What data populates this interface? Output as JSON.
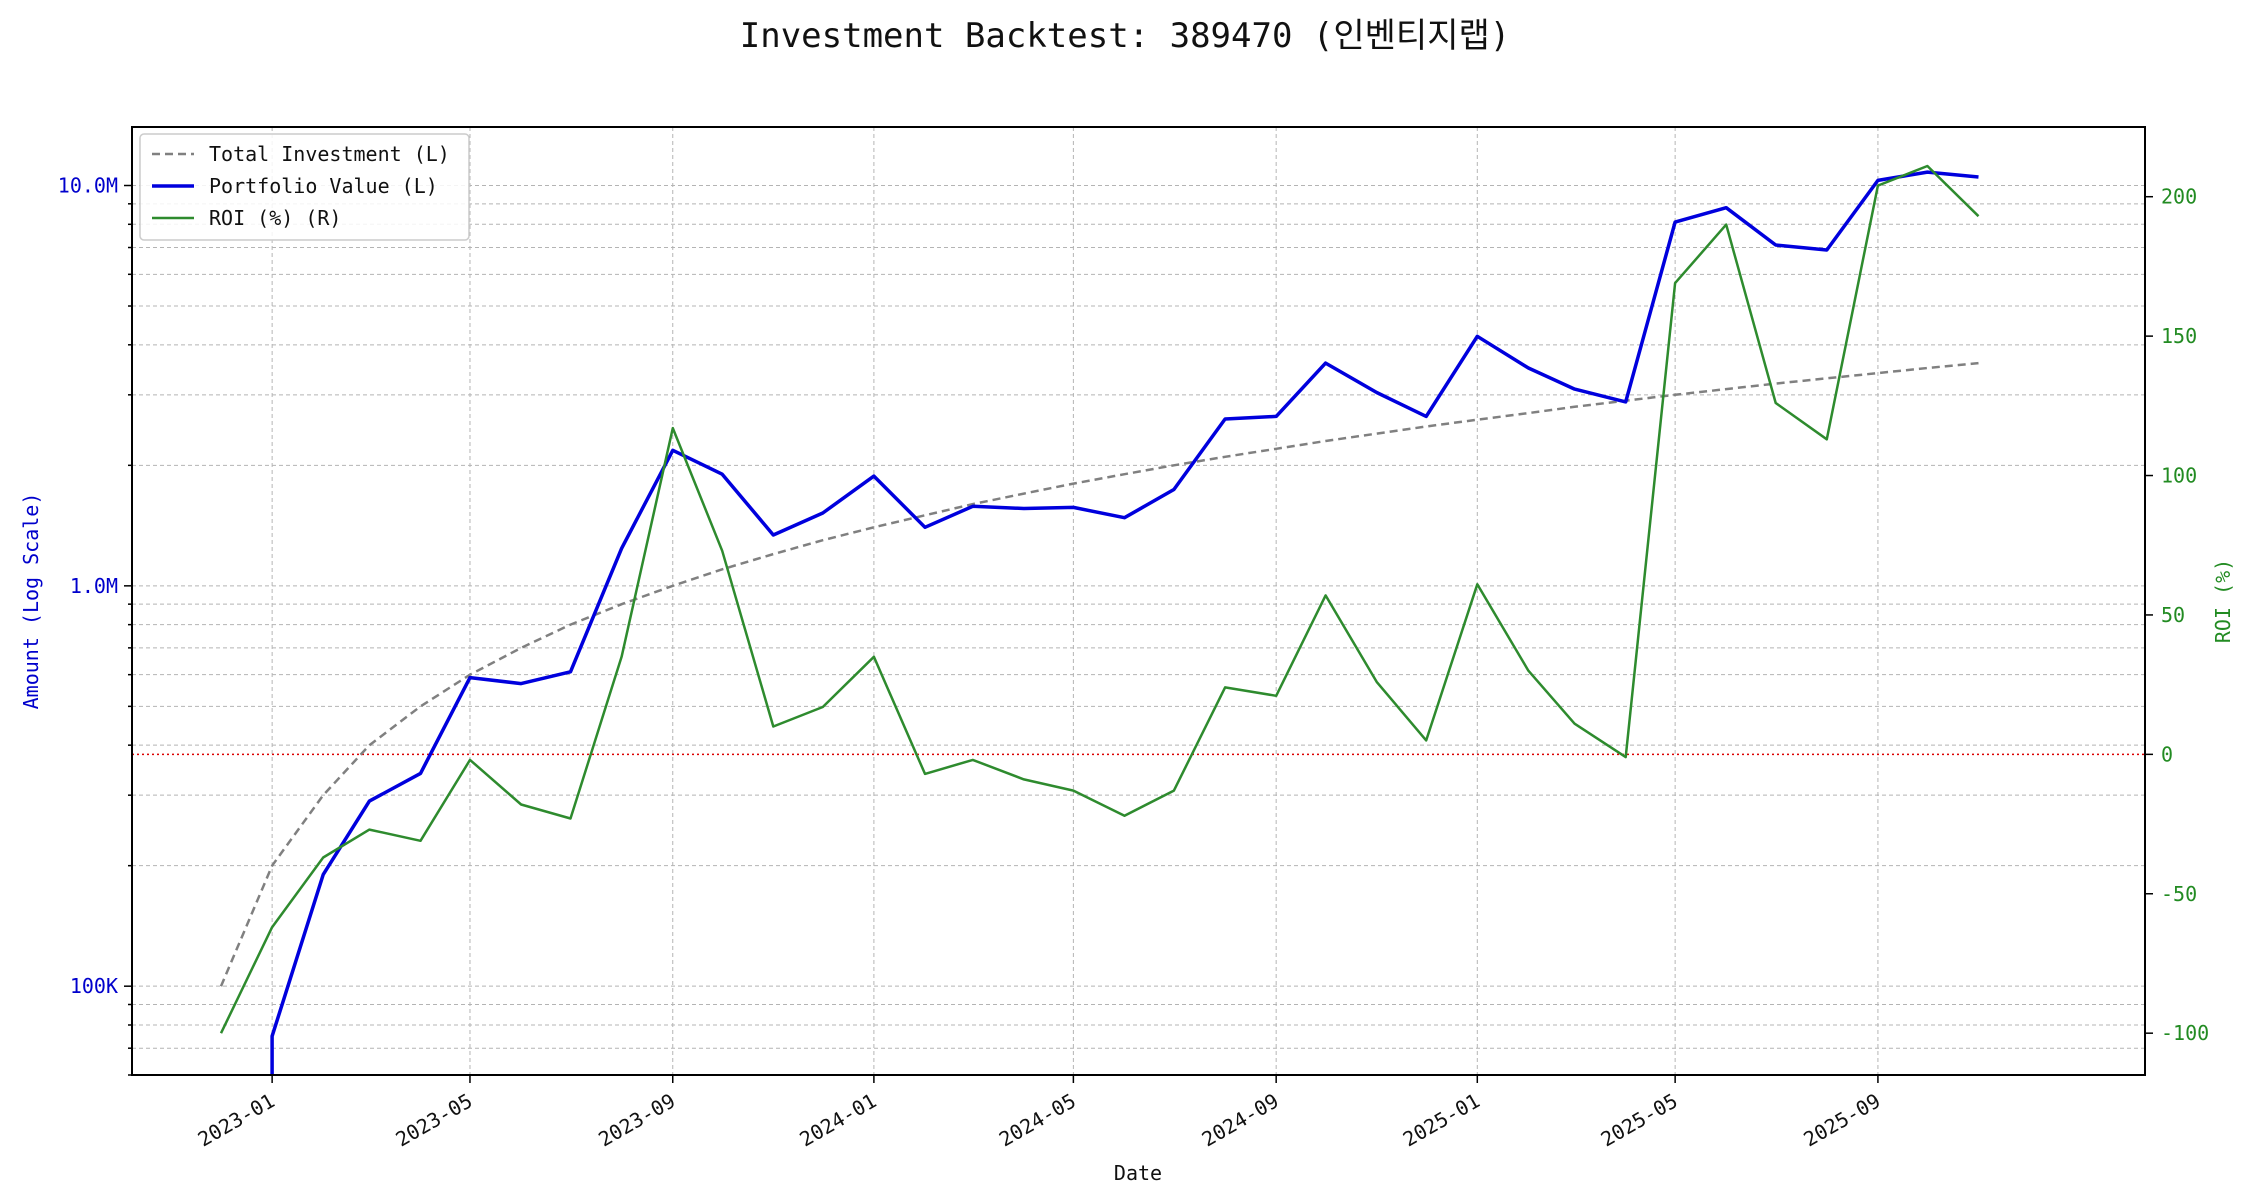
{
  "chart_data": {
    "type": "line",
    "title": "Investment Backtest: 389470 (인벤티지랩)",
    "xlabel": "Date",
    "ylabel_left": "Amount (Log Scale)",
    "ylabel_right": "ROI (%)",
    "left_scale": "log",
    "ylim_left": [
      60000,
      14000000
    ],
    "ylim_right": [
      -115,
      225
    ],
    "xlim": [
      "2022-10-08",
      "2026-02-10"
    ],
    "x_ticks": [
      "2023-01",
      "2023-05",
      "2023-09",
      "2024-01",
      "2024-05",
      "2024-09",
      "2025-01",
      "2025-05",
      "2025-09"
    ],
    "left_ticks": [
      {
        "value": 100000,
        "label": "100K"
      },
      {
        "value": 1000000,
        "label": "1.0M"
      },
      {
        "value": 10000000,
        "label": "10.0M"
      }
    ],
    "right_ticks": [
      -100,
      -50,
      0,
      50,
      100,
      150,
      200
    ],
    "grid": true,
    "legend_position": "top-left",
    "reference_line": {
      "axis": "right",
      "value": 0,
      "color": "#dd0000",
      "style": "dotted"
    },
    "colors": {
      "investment": "#808080",
      "portfolio": "#0000dd",
      "roi": "#2e8b2e",
      "left_axis": "#0000cc",
      "right_axis": "#228b22"
    },
    "x": [
      "2022-12-01",
      "2023-01-01",
      "2023-02-01",
      "2023-03-01",
      "2023-04-01",
      "2023-05-01",
      "2023-06-01",
      "2023-07-01",
      "2023-08-01",
      "2023-09-01",
      "2023-10-01",
      "2023-11-01",
      "2023-12-01",
      "2024-01-01",
      "2024-02-01",
      "2024-03-01",
      "2024-04-01",
      "2024-05-01",
      "2024-06-01",
      "2024-07-01",
      "2024-08-01",
      "2024-09-01",
      "2024-10-01",
      "2024-11-01",
      "2024-12-01",
      "2025-01-01",
      "2025-02-01",
      "2025-03-01",
      "2025-04-01",
      "2025-05-01",
      "2025-06-01",
      "2025-07-01",
      "2025-08-01",
      "2025-09-01",
      "2025-10-01",
      "2025-11-01"
    ],
    "series": [
      {
        "name": "Total Investment (L)",
        "axis": "left",
        "style": "dashed",
        "values": [
          100000,
          200000,
          300000,
          400000,
          500000,
          600000,
          700000,
          800000,
          900000,
          1000000,
          1100000,
          1200000,
          1300000,
          1400000,
          1500000,
          1600000,
          1700000,
          1800000,
          1900000,
          2000000,
          2100000,
          2200000,
          2300000,
          2400000,
          2500000,
          2600000,
          2700000,
          2800000,
          2900000,
          3000000,
          3100000,
          3200000,
          3300000,
          3400000,
          3500000,
          3600000
        ]
      },
      {
        "name": "Portfolio Value (L)",
        "axis": "left",
        "style": "solid-thick",
        "values": [
          null,
          75000,
          190000,
          290000,
          340000,
          590000,
          570000,
          610000,
          1240000,
          2180000,
          1900000,
          1340000,
          1520000,
          1880000,
          1400000,
          1580000,
          1560000,
          1570000,
          1480000,
          1740000,
          2610000,
          2650000,
          3600000,
          3040000,
          2650000,
          4200000,
          3500000,
          3100000,
          2880000,
          8100000,
          8800000,
          7100000,
          6900000,
          10300000,
          10800000,
          10500000
        ]
      },
      {
        "name": "ROI (%) (R)",
        "axis": "right",
        "style": "solid",
        "values": [
          -100,
          -62,
          -37,
          -27,
          -31,
          -2,
          -18,
          -23,
          35,
          117,
          73,
          10,
          17,
          35,
          -7,
          -2,
          -9,
          -13,
          -22,
          -13,
          24,
          21,
          57,
          26,
          5,
          61,
          30,
          11,
          -1,
          169,
          190,
          126,
          113,
          204,
          211,
          193
        ]
      }
    ]
  }
}
